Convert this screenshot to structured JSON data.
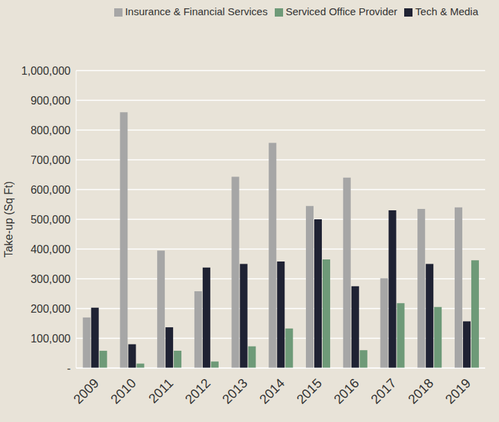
{
  "chart_data": {
    "type": "bar",
    "y_label": "Take-up (Sq Ft)",
    "categories": [
      "2009",
      "2010",
      "2011",
      "2012",
      "2013",
      "2014",
      "2015",
      "2016",
      "2017",
      "2018",
      "2019"
    ],
    "series": [
      {
        "name": "Insurance & Financial Services",
        "color": "#a6a6a6",
        "values": [
          170000,
          860000,
          395000,
          258000,
          643000,
          757000,
          545000,
          640000,
          302000,
          535000,
          540000
        ]
      },
      {
        "name": "Tech & Media",
        "color": "#1f2233",
        "values": [
          203000,
          80000,
          137000,
          338000,
          350000,
          358000,
          500000,
          275000,
          530000,
          350000,
          157000
        ]
      },
      {
        "name": "Serviced Office Provider",
        "color": "#6e9a78",
        "values": [
          58000,
          15000,
          58000,
          22000,
          73000,
          133000,
          365000,
          60000,
          218000,
          205000,
          362000
        ]
      }
    ],
    "ylim": [
      0,
      1000000
    ],
    "yticks": [
      {
        "value": 0,
        "label": "-"
      },
      {
        "value": 100000,
        "label": "100,000"
      },
      {
        "value": 200000,
        "label": "200,000"
      },
      {
        "value": 300000,
        "label": "300,000"
      },
      {
        "value": 400000,
        "label": "400,000"
      },
      {
        "value": 500000,
        "label": "500,000"
      },
      {
        "value": 600000,
        "label": "600,000"
      },
      {
        "value": 700000,
        "label": "700,000"
      },
      {
        "value": 800000,
        "label": "800,000"
      },
      {
        "value": 900000,
        "label": "900,000"
      },
      {
        "value": 1000000,
        "label": "1,000,000"
      }
    ],
    "grid": true,
    "legend": "top"
  }
}
